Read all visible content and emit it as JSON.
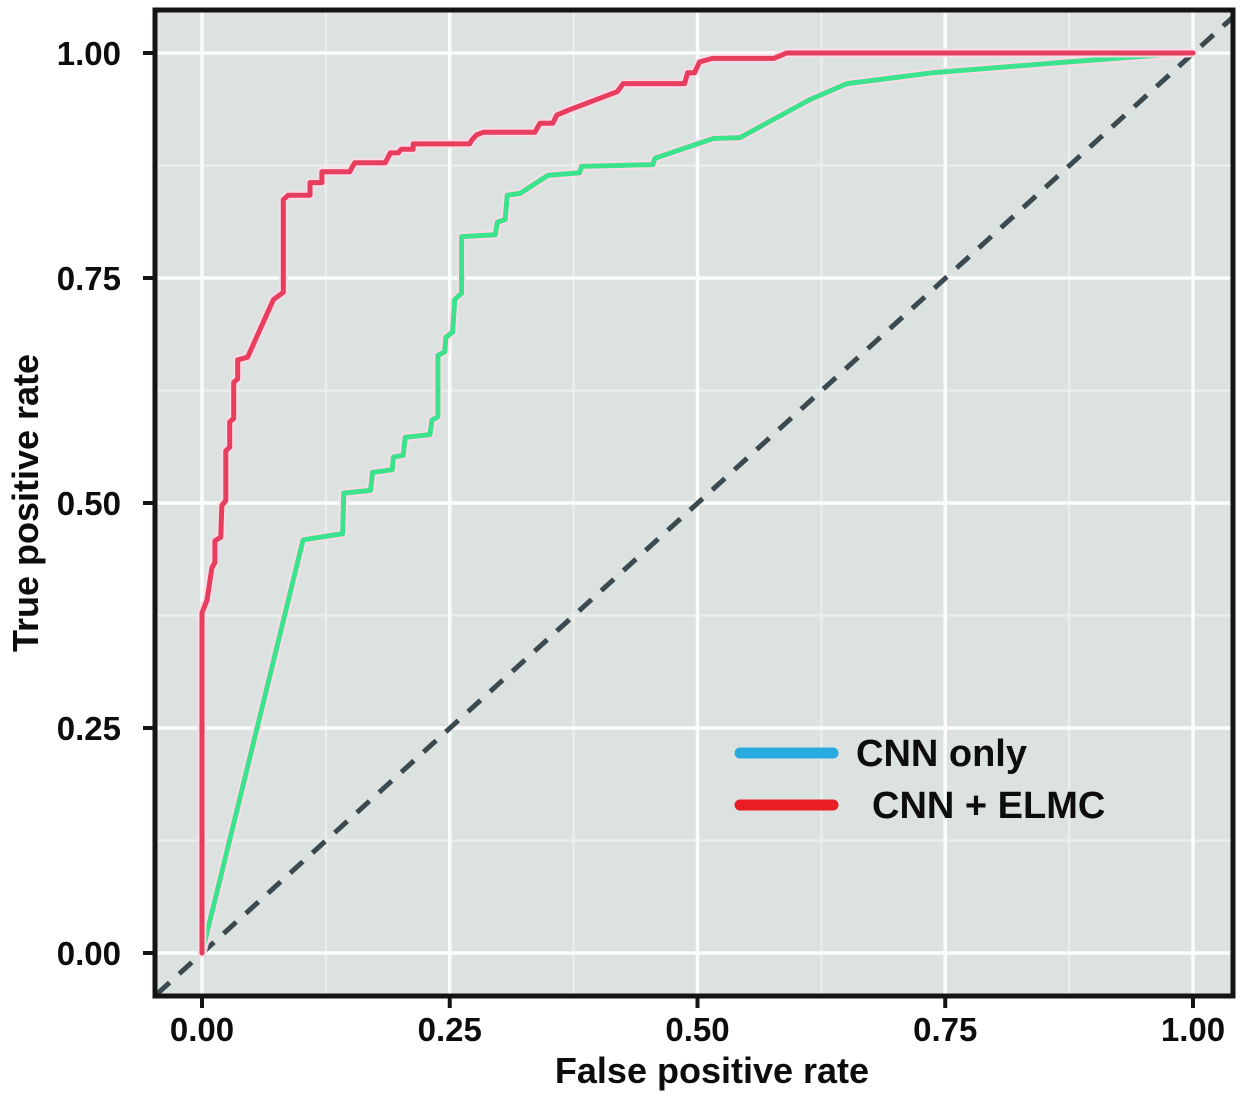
{
  "figure": {
    "description": "ROC curve comparison plot on gray panel with white gridlines",
    "x_axis": {
      "title": "False positive rate",
      "tick_labels": [
        "0.00",
        "0.25",
        "0.50",
        "0.75",
        "1.00"
      ],
      "tick_values": [
        0,
        0.25,
        0.5,
        0.75,
        1
      ]
    },
    "y_axis": {
      "title": "True positive rate",
      "tick_labels": [
        "0.00",
        "0.25",
        "0.50",
        "0.75",
        "1.00"
      ],
      "tick_values": [
        0,
        0.25,
        0.5,
        0.75,
        1
      ]
    },
    "legend": [
      {
        "label": "CNN only",
        "color": "#29abe2"
      },
      {
        "label": "CNN + ELMC",
        "color": "#e81e24"
      }
    ],
    "colors": {
      "panel_background": "#dce2df",
      "major_gridline": "#fbfdfc",
      "minor_gridline": "#eaeeec",
      "panel_border": "#141414",
      "diagonal_reference": "#3b4a50",
      "curve_cnn_only": "#3ce28c",
      "curve_cnn_elmc": "#e83e5e",
      "curve_halo": "#fbdce8",
      "tick_mark": "#141414"
    }
  },
  "chart_data": {
    "type": "line",
    "title": "",
    "xlabel": "False positive rate",
    "ylabel": "True positive rate",
    "xlim": [
      0,
      1
    ],
    "ylim": [
      0,
      1
    ],
    "grid": "major gridlines every 0.25, minor every 0.125, white on gray panel",
    "minor_grid_step": 0.125,
    "major_grid_step": 0.25,
    "legend_position": "lower right",
    "series": [
      {
        "name": "CNN only",
        "legend_color": "#29abe2",
        "line_color": "#3ce28c",
        "style": "solid",
        "points": [
          [
            0.0,
            0.0
          ],
          [
            0.102,
            0.459
          ],
          [
            0.142,
            0.466
          ],
          [
            0.143,
            0.511
          ],
          [
            0.17,
            0.514
          ],
          [
            0.172,
            0.534
          ],
          [
            0.192,
            0.537
          ],
          [
            0.193,
            0.551
          ],
          [
            0.203,
            0.553
          ],
          [
            0.205,
            0.573
          ],
          [
            0.23,
            0.576
          ],
          [
            0.232,
            0.592
          ],
          [
            0.238,
            0.596
          ],
          [
            0.238,
            0.664
          ],
          [
            0.245,
            0.668
          ],
          [
            0.246,
            0.684
          ],
          [
            0.253,
            0.69
          ],
          [
            0.255,
            0.726
          ],
          [
            0.262,
            0.733
          ],
          [
            0.262,
            0.796
          ],
          [
            0.296,
            0.798
          ],
          [
            0.298,
            0.812
          ],
          [
            0.306,
            0.815
          ],
          [
            0.308,
            0.842
          ],
          [
            0.321,
            0.844
          ],
          [
            0.349,
            0.864
          ],
          [
            0.381,
            0.867
          ],
          [
            0.383,
            0.874
          ],
          [
            0.455,
            0.876
          ],
          [
            0.457,
            0.883
          ],
          [
            0.516,
            0.905
          ],
          [
            0.543,
            0.906
          ],
          [
            0.613,
            0.948
          ],
          [
            0.651,
            0.966
          ],
          [
            0.737,
            0.978
          ],
          [
            0.873,
            0.99
          ],
          [
            0.994,
            1.0
          ]
        ]
      },
      {
        "name": "CNN + ELMC",
        "legend_color": "#e81e24",
        "line_color": "#e83e5e",
        "style": "solid",
        "points": [
          [
            0.0,
            0.0
          ],
          [
            0.0,
            0.378
          ],
          [
            0.005,
            0.392
          ],
          [
            0.01,
            0.428
          ],
          [
            0.013,
            0.434
          ],
          [
            0.013,
            0.458
          ],
          [
            0.019,
            0.462
          ],
          [
            0.02,
            0.497
          ],
          [
            0.024,
            0.503
          ],
          [
            0.024,
            0.558
          ],
          [
            0.028,
            0.562
          ],
          [
            0.028,
            0.59
          ],
          [
            0.032,
            0.594
          ],
          [
            0.032,
            0.634
          ],
          [
            0.036,
            0.638
          ],
          [
            0.036,
            0.659
          ],
          [
            0.046,
            0.662
          ],
          [
            0.072,
            0.726
          ],
          [
            0.077,
            0.73
          ],
          [
            0.082,
            0.734
          ],
          [
            0.082,
            0.837
          ],
          [
            0.087,
            0.842
          ],
          [
            0.109,
            0.842
          ],
          [
            0.109,
            0.856
          ],
          [
            0.121,
            0.856
          ],
          [
            0.121,
            0.868
          ],
          [
            0.149,
            0.868
          ],
          [
            0.154,
            0.878
          ],
          [
            0.185,
            0.878
          ],
          [
            0.19,
            0.889
          ],
          [
            0.198,
            0.889
          ],
          [
            0.201,
            0.893
          ],
          [
            0.213,
            0.893
          ],
          [
            0.213,
            0.899
          ],
          [
            0.27,
            0.899
          ],
          [
            0.272,
            0.903
          ],
          [
            0.277,
            0.909
          ],
          [
            0.284,
            0.912
          ],
          [
            0.336,
            0.912
          ],
          [
            0.341,
            0.922
          ],
          [
            0.354,
            0.922
          ],
          [
            0.358,
            0.931
          ],
          [
            0.371,
            0.937
          ],
          [
            0.419,
            0.957
          ],
          [
            0.425,
            0.966
          ],
          [
            0.487,
            0.966
          ],
          [
            0.49,
            0.978
          ],
          [
            0.497,
            0.978
          ],
          [
            0.502,
            0.99
          ],
          [
            0.515,
            0.994
          ],
          [
            0.577,
            0.994
          ],
          [
            0.59,
            1.0
          ],
          [
            1.0,
            1.0
          ]
        ]
      },
      {
        "name": "chance-diagonal",
        "line_color": "#3b4a50",
        "style": "dashed",
        "points": [
          [
            0,
            0
          ],
          [
            1,
            1
          ]
        ]
      }
    ]
  }
}
